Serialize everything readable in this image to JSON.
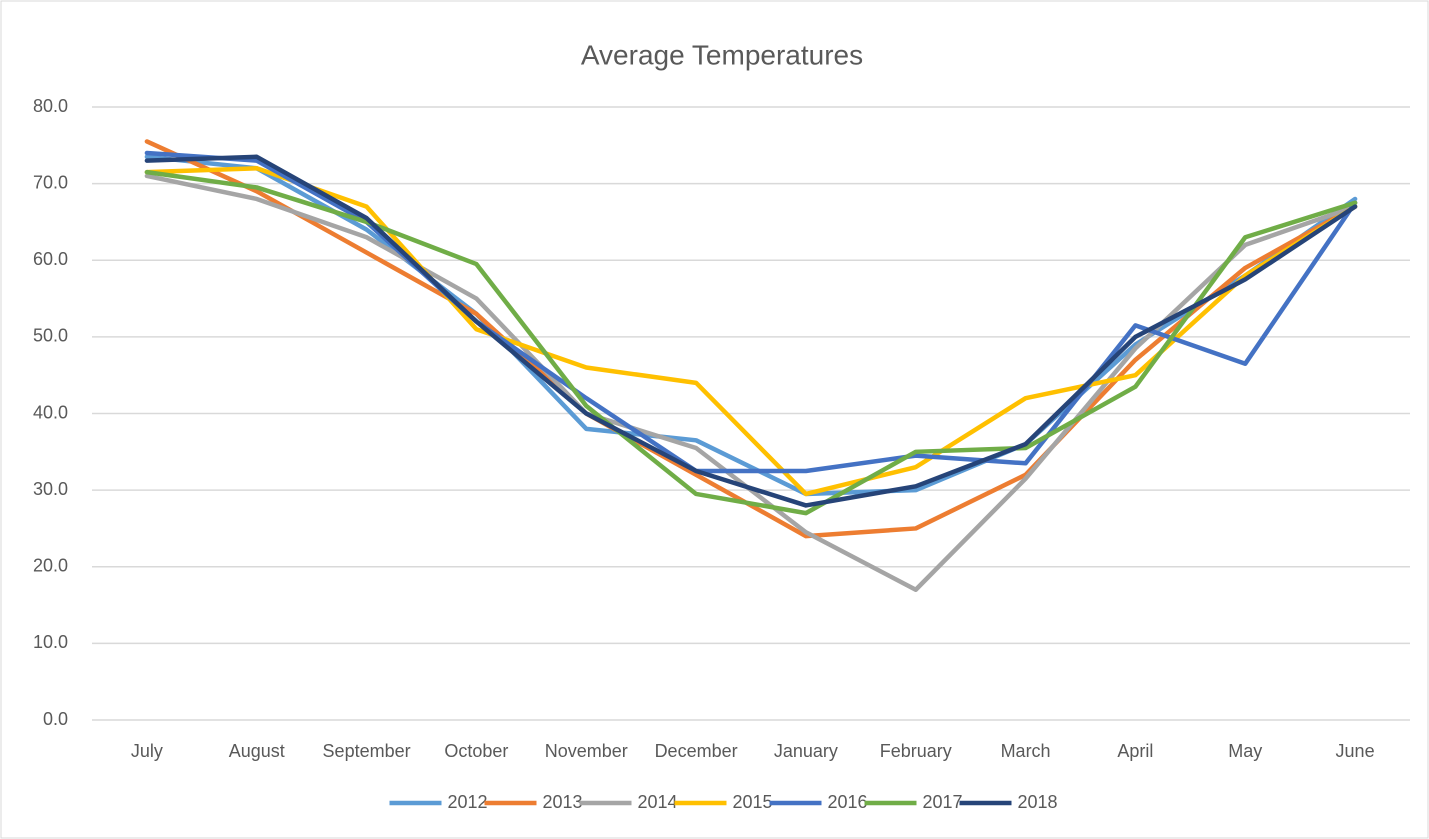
{
  "chart_data": {
    "type": "line",
    "title": "Average Temperatures",
    "categories": [
      "July",
      "August",
      "September",
      "October",
      "November",
      "December",
      "January",
      "February",
      "March",
      "April",
      "May",
      "June"
    ],
    "series": [
      {
        "name": "2012",
        "color": "#5b9bd5",
        "values": [
          73.5,
          72,
          64,
          53,
          38,
          36.5,
          29.5,
          30,
          36,
          49,
          58,
          68
        ]
      },
      {
        "name": "2013",
        "color": "#ed7d31",
        "values": [
          75.5,
          69,
          61,
          53,
          40,
          32,
          24,
          25,
          32,
          47,
          59,
          67
        ]
      },
      {
        "name": "2014",
        "color": "#a5a5a5",
        "values": [
          71,
          68,
          63,
          55,
          40,
          35.5,
          24.5,
          17,
          31.5,
          48.5,
          62,
          67
        ]
      },
      {
        "name": "2015",
        "color": "#ffc000",
        "values": [
          71.5,
          72,
          67,
          51,
          46,
          44,
          29.5,
          33,
          42,
          45,
          58,
          67
        ]
      },
      {
        "name": "2016",
        "color": "#4472c4",
        "values": [
          74,
          73,
          65,
          52,
          42,
          32.5,
          32.5,
          34.5,
          33.5,
          51.5,
          46.5,
          67.5
        ]
      },
      {
        "name": "2017",
        "color": "#70ad47",
        "values": [
          71.5,
          69.5,
          65,
          59.5,
          41,
          29.5,
          27,
          35,
          35.5,
          43.5,
          63,
          67.5
        ]
      },
      {
        "name": "2018",
        "color": "#264478",
        "values": [
          73,
          73.5,
          65.5,
          52,
          40,
          32.5,
          28,
          30.5,
          36,
          50,
          57.5,
          67
        ]
      }
    ],
    "ylim": [
      0,
      80
    ],
    "yticks": [
      {
        "value": 0,
        "label": "0.0"
      },
      {
        "value": 10,
        "label": "10.0"
      },
      {
        "value": 20,
        "label": "20.0"
      },
      {
        "value": 30,
        "label": "30.0"
      },
      {
        "value": 40,
        "label": "40.0"
      },
      {
        "value": 50,
        "label": "50.0"
      },
      {
        "value": 60,
        "label": "60.0"
      },
      {
        "value": 70,
        "label": "70.0"
      },
      {
        "value": 80,
        "label": "80.0"
      }
    ],
    "grid": true,
    "legend": "bottom"
  }
}
